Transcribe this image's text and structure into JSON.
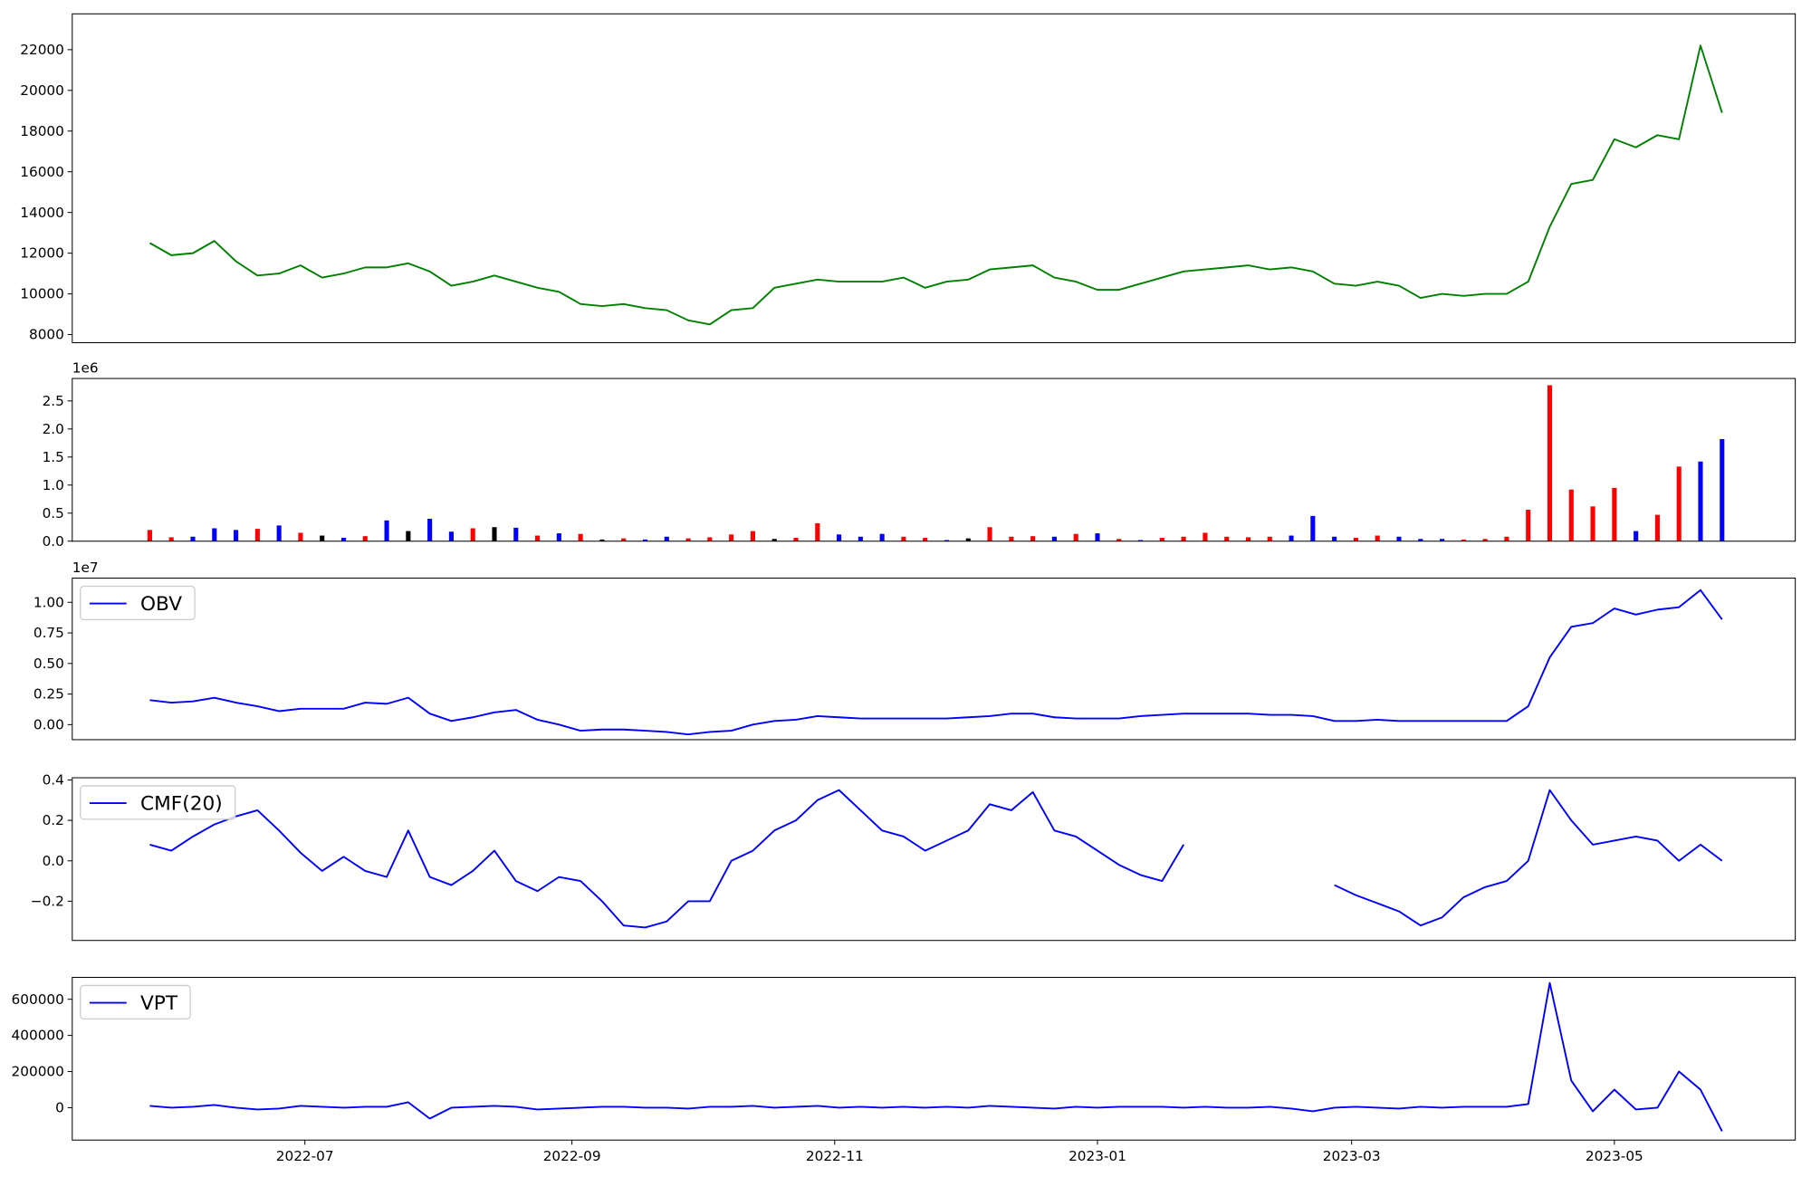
{
  "chart_data": [
    {
      "type": "line",
      "x": [
        19138,
        19143,
        19148,
        19153,
        19158,
        19163,
        19168,
        19173,
        19178,
        19183,
        19188,
        19193,
        19198,
        19203,
        19208,
        19213,
        19218,
        19223,
        19228,
        19233,
        19238,
        19243,
        19248,
        19253,
        19258,
        19263,
        19268,
        19273,
        19278,
        19283,
        19288,
        19293,
        19298,
        19303,
        19308,
        19313,
        19318,
        19323,
        19328,
        19333,
        19338,
        19343,
        19348,
        19353,
        19358,
        19363,
        19368,
        19373,
        19378,
        19383,
        19388,
        19393,
        19398,
        19403,
        19408,
        19413,
        19418,
        19423,
        19428,
        19433,
        19438,
        19443,
        19448,
        19453,
        19458,
        19463,
        19468,
        19473,
        19478,
        19483,
        19488,
        19493,
        19498,
        19503
      ],
      "values": [
        12500,
        11900,
        12000,
        12600,
        11600,
        10900,
        11000,
        11400,
        10800,
        11000,
        11300,
        11300,
        11500,
        11100,
        10400,
        10600,
        10900,
        10600,
        10300,
        10100,
        9500,
        9400,
        9500,
        9300,
        9200,
        8700,
        8500,
        9200,
        9300,
        10300,
        10500,
        10700,
        10600,
        10600,
        10600,
        10800,
        10300,
        10600,
        10700,
        11200,
        11300,
        11400,
        10800,
        10600,
        10200,
        10200,
        10500,
        10800,
        11100,
        11200,
        11300,
        11400,
        11200,
        11300,
        11100,
        10500,
        10400,
        10600,
        10400,
        9800,
        10000,
        9900,
        10000,
        10000,
        10600,
        13300,
        15400,
        15600,
        17600,
        17200,
        17800,
        17600,
        22200,
        18900
      ],
      "color": "#008000",
      "xlim": [
        19120,
        19520
      ],
      "ylim": [
        7600,
        23760
      ],
      "yticks": [
        8000,
        10000,
        12000,
        14000,
        16000,
        18000,
        20000,
        22000
      ]
    },
    {
      "type": "bar",
      "x": [
        19138,
        19143,
        19148,
        19153,
        19158,
        19163,
        19168,
        19173,
        19178,
        19183,
        19188,
        19193,
        19198,
        19203,
        19208,
        19213,
        19218,
        19223,
        19228,
        19233,
        19238,
        19243,
        19248,
        19253,
        19258,
        19263,
        19268,
        19273,
        19278,
        19283,
        19288,
        19293,
        19298,
        19303,
        19308,
        19313,
        19318,
        19323,
        19328,
        19333,
        19338,
        19343,
        19348,
        19353,
        19358,
        19363,
        19368,
        19373,
        19378,
        19383,
        19388,
        19393,
        19398,
        19403,
        19408,
        19413,
        19418,
        19423,
        19428,
        19433,
        19438,
        19443,
        19448,
        19453,
        19458,
        19463,
        19468,
        19473,
        19478,
        19483,
        19488,
        19493,
        19498,
        19503
      ],
      "values": [
        200000,
        70000,
        80000,
        230000,
        200000,
        220000,
        280000,
        150000,
        100000,
        60000,
        90000,
        370000,
        180000,
        400000,
        170000,
        230000,
        250000,
        240000,
        100000,
        140000,
        130000,
        30000,
        50000,
        30000,
        80000,
        50000,
        70000,
        120000,
        180000,
        40000,
        60000,
        320000,
        120000,
        80000,
        130000,
        80000,
        60000,
        20000,
        50000,
        250000,
        80000,
        90000,
        80000,
        130000,
        140000,
        40000,
        20000,
        60000,
        80000,
        150000,
        80000,
        70000,
        80000,
        100000,
        450000,
        80000,
        60000,
        100000,
        80000,
        40000,
        40000,
        30000,
        40000,
        80000,
        560000,
        2780000,
        920000,
        620000,
        950000,
        180000,
        470000,
        1330000,
        1420000,
        1820000
      ],
      "colors": [
        "red",
        "red",
        "blue",
        "blue",
        "blue",
        "red",
        "blue",
        "red",
        "black",
        "blue",
        "red",
        "blue",
        "black",
        "blue",
        "blue",
        "red",
        "black",
        "blue",
        "red",
        "blue",
        "red",
        "black",
        "red",
        "blue",
        "blue",
        "red",
        "red",
        "red",
        "red",
        "black",
        "red",
        "red",
        "blue",
        "blue",
        "blue",
        "red",
        "red",
        "blue",
        "black",
        "red",
        "red",
        "red",
        "blue",
        "red",
        "blue",
        "red",
        "blue",
        "red",
        "red",
        "red",
        "red",
        "red",
        "red",
        "blue",
        "blue",
        "blue",
        "red",
        "red",
        "blue",
        "blue",
        "blue",
        "red",
        "red",
        "red",
        "red",
        "red",
        "red",
        "red",
        "red",
        "blue",
        "red",
        "red",
        "blue",
        "blue"
      ],
      "offset_label": "1e6",
      "xlim": [
        19120,
        19520
      ],
      "ylim": [
        0,
        2900000
      ],
      "yticks": [
        {
          "value": 0,
          "label": "0.0"
        },
        {
          "value": 500000,
          "label": "0.5"
        },
        {
          "value": 1000000,
          "label": "1.0"
        },
        {
          "value": 1500000,
          "label": "1.5"
        },
        {
          "value": 2000000,
          "label": "2.0"
        },
        {
          "value": 2500000,
          "label": "2.5"
        }
      ]
    },
    {
      "type": "line",
      "x": [
        19138,
        19143,
        19148,
        19153,
        19158,
        19163,
        19168,
        19173,
        19178,
        19183,
        19188,
        19193,
        19198,
        19203,
        19208,
        19213,
        19218,
        19223,
        19228,
        19233,
        19238,
        19243,
        19248,
        19253,
        19258,
        19263,
        19268,
        19273,
        19278,
        19283,
        19288,
        19293,
        19298,
        19303,
        19308,
        19313,
        19318,
        19323,
        19328,
        19333,
        19338,
        19343,
        19348,
        19353,
        19358,
        19363,
        19368,
        19373,
        19378,
        19383,
        19388,
        19393,
        19398,
        19403,
        19408,
        19413,
        19418,
        19423,
        19428,
        19433,
        19438,
        19443,
        19448,
        19453,
        19458,
        19463,
        19468,
        19473,
        19478,
        19483,
        19488,
        19493,
        19498,
        19503
      ],
      "series": [
        {
          "name": "OBV",
          "color": "#0000ff",
          "values": [
            2000000,
            1800000,
            1900000,
            2200000,
            1800000,
            1500000,
            1100000,
            1300000,
            1300000,
            1300000,
            1800000,
            1700000,
            2200000,
            900000,
            300000,
            600000,
            1000000,
            1200000,
            400000,
            0,
            -500000,
            -400000,
            -400000,
            -500000,
            -600000,
            -800000,
            -600000,
            -500000,
            0,
            300000,
            400000,
            700000,
            600000,
            500000,
            500000,
            500000,
            500000,
            500000,
            600000,
            700000,
            900000,
            900000,
            600000,
            500000,
            500000,
            500000,
            700000,
            800000,
            900000,
            900000,
            900000,
            900000,
            800000,
            800000,
            700000,
            300000,
            300000,
            400000,
            300000,
            300000,
            300000,
            300000,
            300000,
            300000,
            1500000,
            5500000,
            8000000,
            8300000,
            9500000,
            9000000,
            9400000,
            9600000,
            11000000,
            8600000
          ]
        }
      ],
      "legend": "upper left",
      "offset_label": "1e7",
      "xlim": [
        19120,
        19520
      ],
      "ylim": [
        -1230000,
        11980000
      ],
      "yticks": [
        {
          "value": 0,
          "label": "0.00"
        },
        {
          "value": 2500000,
          "label": "0.25"
        },
        {
          "value": 5000000,
          "label": "0.50"
        },
        {
          "value": 7500000,
          "label": "0.75"
        },
        {
          "value": 10000000,
          "label": "1.00"
        }
      ]
    },
    {
      "type": "line",
      "x": [
        19138,
        19143,
        19148,
        19153,
        19158,
        19163,
        19168,
        19173,
        19178,
        19183,
        19188,
        19193,
        19198,
        19203,
        19208,
        19213,
        19218,
        19223,
        19228,
        19233,
        19238,
        19243,
        19248,
        19253,
        19258,
        19263,
        19268,
        19273,
        19278,
        19283,
        19288,
        19293,
        19298,
        19303,
        19308,
        19313,
        19318,
        19323,
        19328,
        19333,
        19338,
        19343,
        19348,
        19353,
        19358,
        19363,
        19368,
        19373,
        19378,
        19383,
        19388,
        19393,
        19398,
        19403,
        19408,
        19413,
        19418,
        19423,
        19428,
        19433,
        19438,
        19443,
        19448,
        19453,
        19458,
        19463,
        19468,
        19473,
        19478,
        19483,
        19488,
        19493,
        19498,
        19503
      ],
      "series": [
        {
          "name": "CMF(20)",
          "color": "#0000ff",
          "values": [
            0.08,
            0.05,
            0.12,
            0.18,
            0.22,
            0.25,
            0.15,
            0.04,
            -0.05,
            0.02,
            -0.05,
            -0.08,
            0.15,
            -0.08,
            -0.12,
            -0.05,
            0.05,
            -0.1,
            -0.15,
            -0.08,
            -0.1,
            -0.2,
            -0.32,
            -0.33,
            -0.3,
            -0.2,
            -0.2,
            0.0,
            0.05,
            0.15,
            0.2,
            0.3,
            0.35,
            0.25,
            0.15,
            0.12,
            0.05,
            0.1,
            0.15,
            0.28,
            0.25,
            0.34,
            0.15,
            0.12,
            0.05,
            -0.02,
            -0.07,
            -0.1,
            0.08,
            null,
            null,
            null,
            null,
            null,
            null,
            -0.12,
            -0.17,
            -0.21,
            -0.25,
            -0.32,
            -0.28,
            -0.18,
            -0.13,
            -0.1,
            0.0,
            0.35,
            0.2,
            0.08,
            0.1,
            0.12,
            0.1,
            0.0,
            0.08,
            0.0
          ]
        }
      ],
      "legend": "upper left",
      "xlim": [
        19120,
        19520
      ],
      "ylim": [
        -0.394,
        0.411
      ],
      "yticks": [
        {
          "value": -0.2,
          "label": "−0.2"
        },
        {
          "value": 0,
          "label": "0.0"
        },
        0.2,
        0.4
      ]
    },
    {
      "type": "line",
      "x": [
        19138,
        19143,
        19148,
        19153,
        19158,
        19163,
        19168,
        19173,
        19178,
        19183,
        19188,
        19193,
        19198,
        19203,
        19208,
        19213,
        19218,
        19223,
        19228,
        19233,
        19238,
        19243,
        19248,
        19253,
        19258,
        19263,
        19268,
        19273,
        19278,
        19283,
        19288,
        19293,
        19298,
        19303,
        19308,
        19313,
        19318,
        19323,
        19328,
        19333,
        19338,
        19343,
        19348,
        19353,
        19358,
        19363,
        19368,
        19373,
        19378,
        19383,
        19388,
        19393,
        19398,
        19403,
        19408,
        19413,
        19418,
        19423,
        19428,
        19433,
        19438,
        19443,
        19448,
        19453,
        19458,
        19463,
        19468,
        19473,
        19478,
        19483,
        19488,
        19493,
        19498,
        19503
      ],
      "series": [
        {
          "name": "VPT",
          "color": "#0000ff",
          "values": [
            10000,
            0,
            5000,
            15000,
            0,
            -10000,
            -5000,
            10000,
            5000,
            0,
            5000,
            5000,
            30000,
            -60000,
            0,
            5000,
            10000,
            5000,
            -10000,
            -5000,
            0,
            5000,
            5000,
            0,
            0,
            -5000,
            5000,
            5000,
            10000,
            0,
            5000,
            10000,
            0,
            5000,
            0,
            5000,
            0,
            5000,
            0,
            10000,
            5000,
            0,
            -5000,
            5000,
            0,
            5000,
            5000,
            5000,
            0,
            5000,
            0,
            0,
            5000,
            -5000,
            -20000,
            0,
            5000,
            0,
            -5000,
            5000,
            0,
            5000,
            5000,
            5000,
            20000,
            690000,
            150000,
            -20000,
            100000,
            -10000,
            0,
            200000,
            100000,
            -130000
          ]
        }
      ],
      "legend": "upper left",
      "xlim": [
        19120,
        19520
      ],
      "ylim": [
        -179000,
        721000
      ],
      "yticks": [
        0,
        200000,
        400000,
        600000
      ],
      "xticks": [
        {
          "value": 19174,
          "label": "2022-07"
        },
        {
          "value": 19236,
          "label": "2022-09"
        },
        {
          "value": 19297,
          "label": "2022-11"
        },
        {
          "value": 19358,
          "label": "2023-01"
        },
        {
          "value": 19417,
          "label": "2023-03"
        },
        {
          "value": 19478,
          "label": "2023-05"
        }
      ]
    }
  ]
}
